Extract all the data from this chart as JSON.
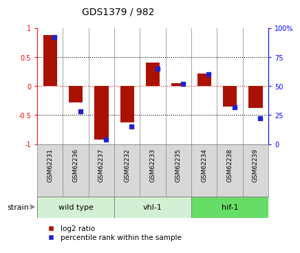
{
  "title": "GDS1379 / 982",
  "samples": [
    "GSM62231",
    "GSM62236",
    "GSM62237",
    "GSM62232",
    "GSM62233",
    "GSM62235",
    "GSM62234",
    "GSM62238",
    "GSM62239"
  ],
  "log2_ratio": [
    0.88,
    -0.28,
    -0.92,
    -0.62,
    0.4,
    0.05,
    0.22,
    -0.35,
    -0.38
  ],
  "percentile_rank": [
    92,
    28,
    4,
    15,
    65,
    52,
    60,
    32,
    22
  ],
  "group_colors": [
    "#d4f0d4",
    "#d4f0d4",
    "#66dd66"
  ],
  "group_labels": [
    "wild type",
    "vhl-1",
    "hif-1"
  ],
  "group_starts": [
    0,
    3,
    6
  ],
  "group_ends": [
    3,
    6,
    9
  ],
  "bar_color_red": "#aa1100",
  "bar_color_blue": "#2222cc",
  "ylim_left": [
    -1,
    1
  ],
  "ylim_right": [
    0,
    100
  ],
  "yticks_left": [
    -1,
    -0.5,
    0,
    0.5,
    1
  ],
  "ytick_labels_left": [
    "-1",
    "-0.5",
    "0",
    "0.5",
    "1"
  ],
  "yticks_right": [
    0,
    25,
    50,
    75,
    100
  ],
  "ytick_labels_right": [
    "0",
    "25",
    "50",
    "75",
    "100%"
  ],
  "legend_red": "log2 ratio",
  "legend_blue": "percentile rank within the sample",
  "strain_label": "strain"
}
